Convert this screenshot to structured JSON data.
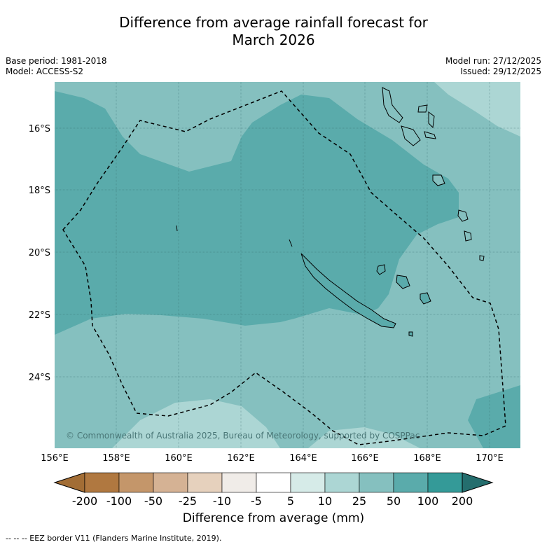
{
  "title_line1": "Difference from average rainfall forecast for",
  "title_line2": "March 2026",
  "meta_left": [
    "Base period: 1981-2018",
    "Model: ACCESS-S2"
  ],
  "meta_right": [
    "Model run: 27/12/2025",
    "Issued: 29/12/2025"
  ],
  "copyright": "© Commonwealth of Australia 2025, Bureau of Meteorology, supported by COSPPac",
  "lat_labels": [
    "16°S",
    "18°S",
    "20°S",
    "22°S",
    "24°S"
  ],
  "lon_labels": [
    "156°E",
    "158°E",
    "160°E",
    "162°E",
    "164°E",
    "166°E",
    "168°E",
    "170°E"
  ],
  "colorbar": {
    "ticks": [
      "-200",
      "-100",
      "-50",
      "-25",
      "-10",
      "-5",
      "5",
      "10",
      "25",
      "50",
      "100",
      "200"
    ],
    "colors": [
      "#a26d35",
      "#b07840",
      "#c4966a",
      "#d5b294",
      "#e6d1bd",
      "#f0ece8",
      "#ffffff",
      "#d6ebe8",
      "#acd6d4",
      "#85c0bf",
      "#5aabab",
      "#349a98",
      "#246e6e"
    ],
    "label": "Difference from average (mm)"
  },
  "footnote": "--  --  -- EEZ border V11 (Flanders Marine Institute, 2019).",
  "map_colors": {
    "band_25_50": "#85c0bf",
    "band_50_100": "#5aabab",
    "band_10_25": "#acd6d4"
  }
}
